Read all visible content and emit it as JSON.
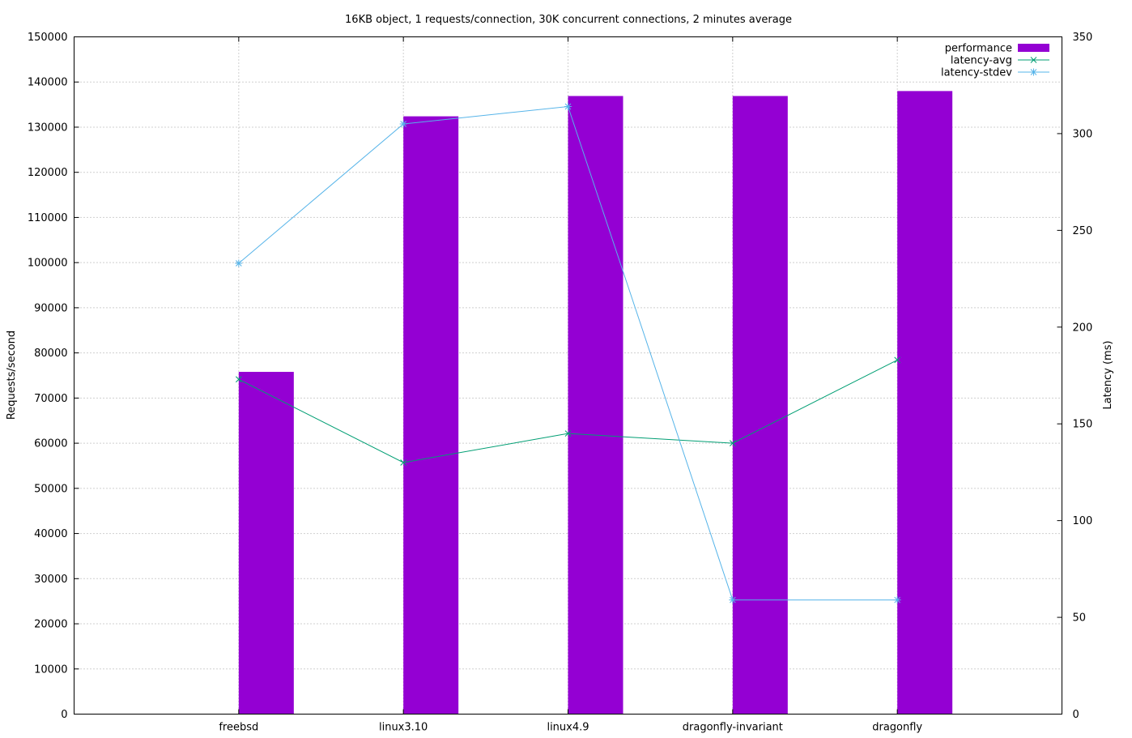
{
  "chart_data": {
    "type": "bar",
    "title": "16KB object, 1 requests/connection, 30K concurrent connections, 2 minutes average",
    "categories": [
      "freebsd",
      "linux3.10",
      "linux4.9",
      "dragonfly-invariant",
      "dragonfly"
    ],
    "ylabel": "Requests/second",
    "y2label": "Latency (ms)",
    "ylim": [
      0,
      150000
    ],
    "y2lim": [
      0,
      350
    ],
    "yticks": [
      0,
      10000,
      20000,
      30000,
      40000,
      50000,
      60000,
      70000,
      80000,
      90000,
      100000,
      110000,
      120000,
      130000,
      140000,
      150000
    ],
    "y2ticks": [
      0,
      50,
      100,
      150,
      200,
      250,
      300,
      350
    ],
    "grid": true,
    "legend_position": "top-right",
    "series": [
      {
        "name": "performance",
        "kind": "bar",
        "axis": "y",
        "color": "#9400d3",
        "values": [
          75800,
          132400,
          136900,
          136900,
          138000
        ]
      },
      {
        "name": "latency-avg",
        "kind": "line",
        "axis": "y2",
        "marker": "x",
        "color": "#009e73",
        "values": [
          173,
          130,
          145,
          140,
          183
        ]
      },
      {
        "name": "latency-stdev",
        "kind": "line",
        "axis": "y2",
        "marker": "star",
        "color": "#56b4e9",
        "values": [
          233,
          305,
          314,
          59,
          59
        ]
      }
    ]
  }
}
